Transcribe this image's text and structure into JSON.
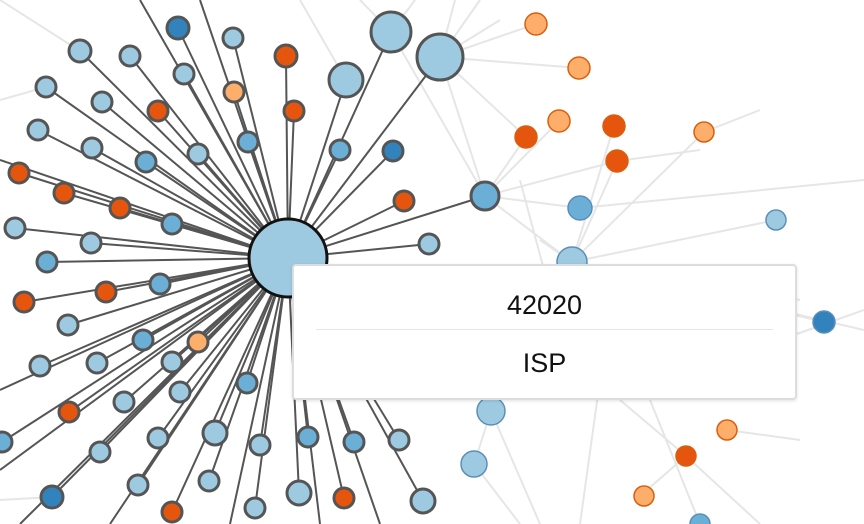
{
  "colors": {
    "link_strong": "#555555",
    "link_faint": "#e6e6e6",
    "node_stroke": "#555555",
    "hub_stroke": "#111111",
    "node_light_blue": "#9ecae1",
    "node_mid_blue": "#6baed6",
    "node_dark_blue": "#3182bd",
    "node_dark_orange": "#e6550d",
    "node_light_orange": "#fdae6b"
  },
  "tooltip": {
    "title": "42020",
    "subtitle": "ISP"
  }
}
